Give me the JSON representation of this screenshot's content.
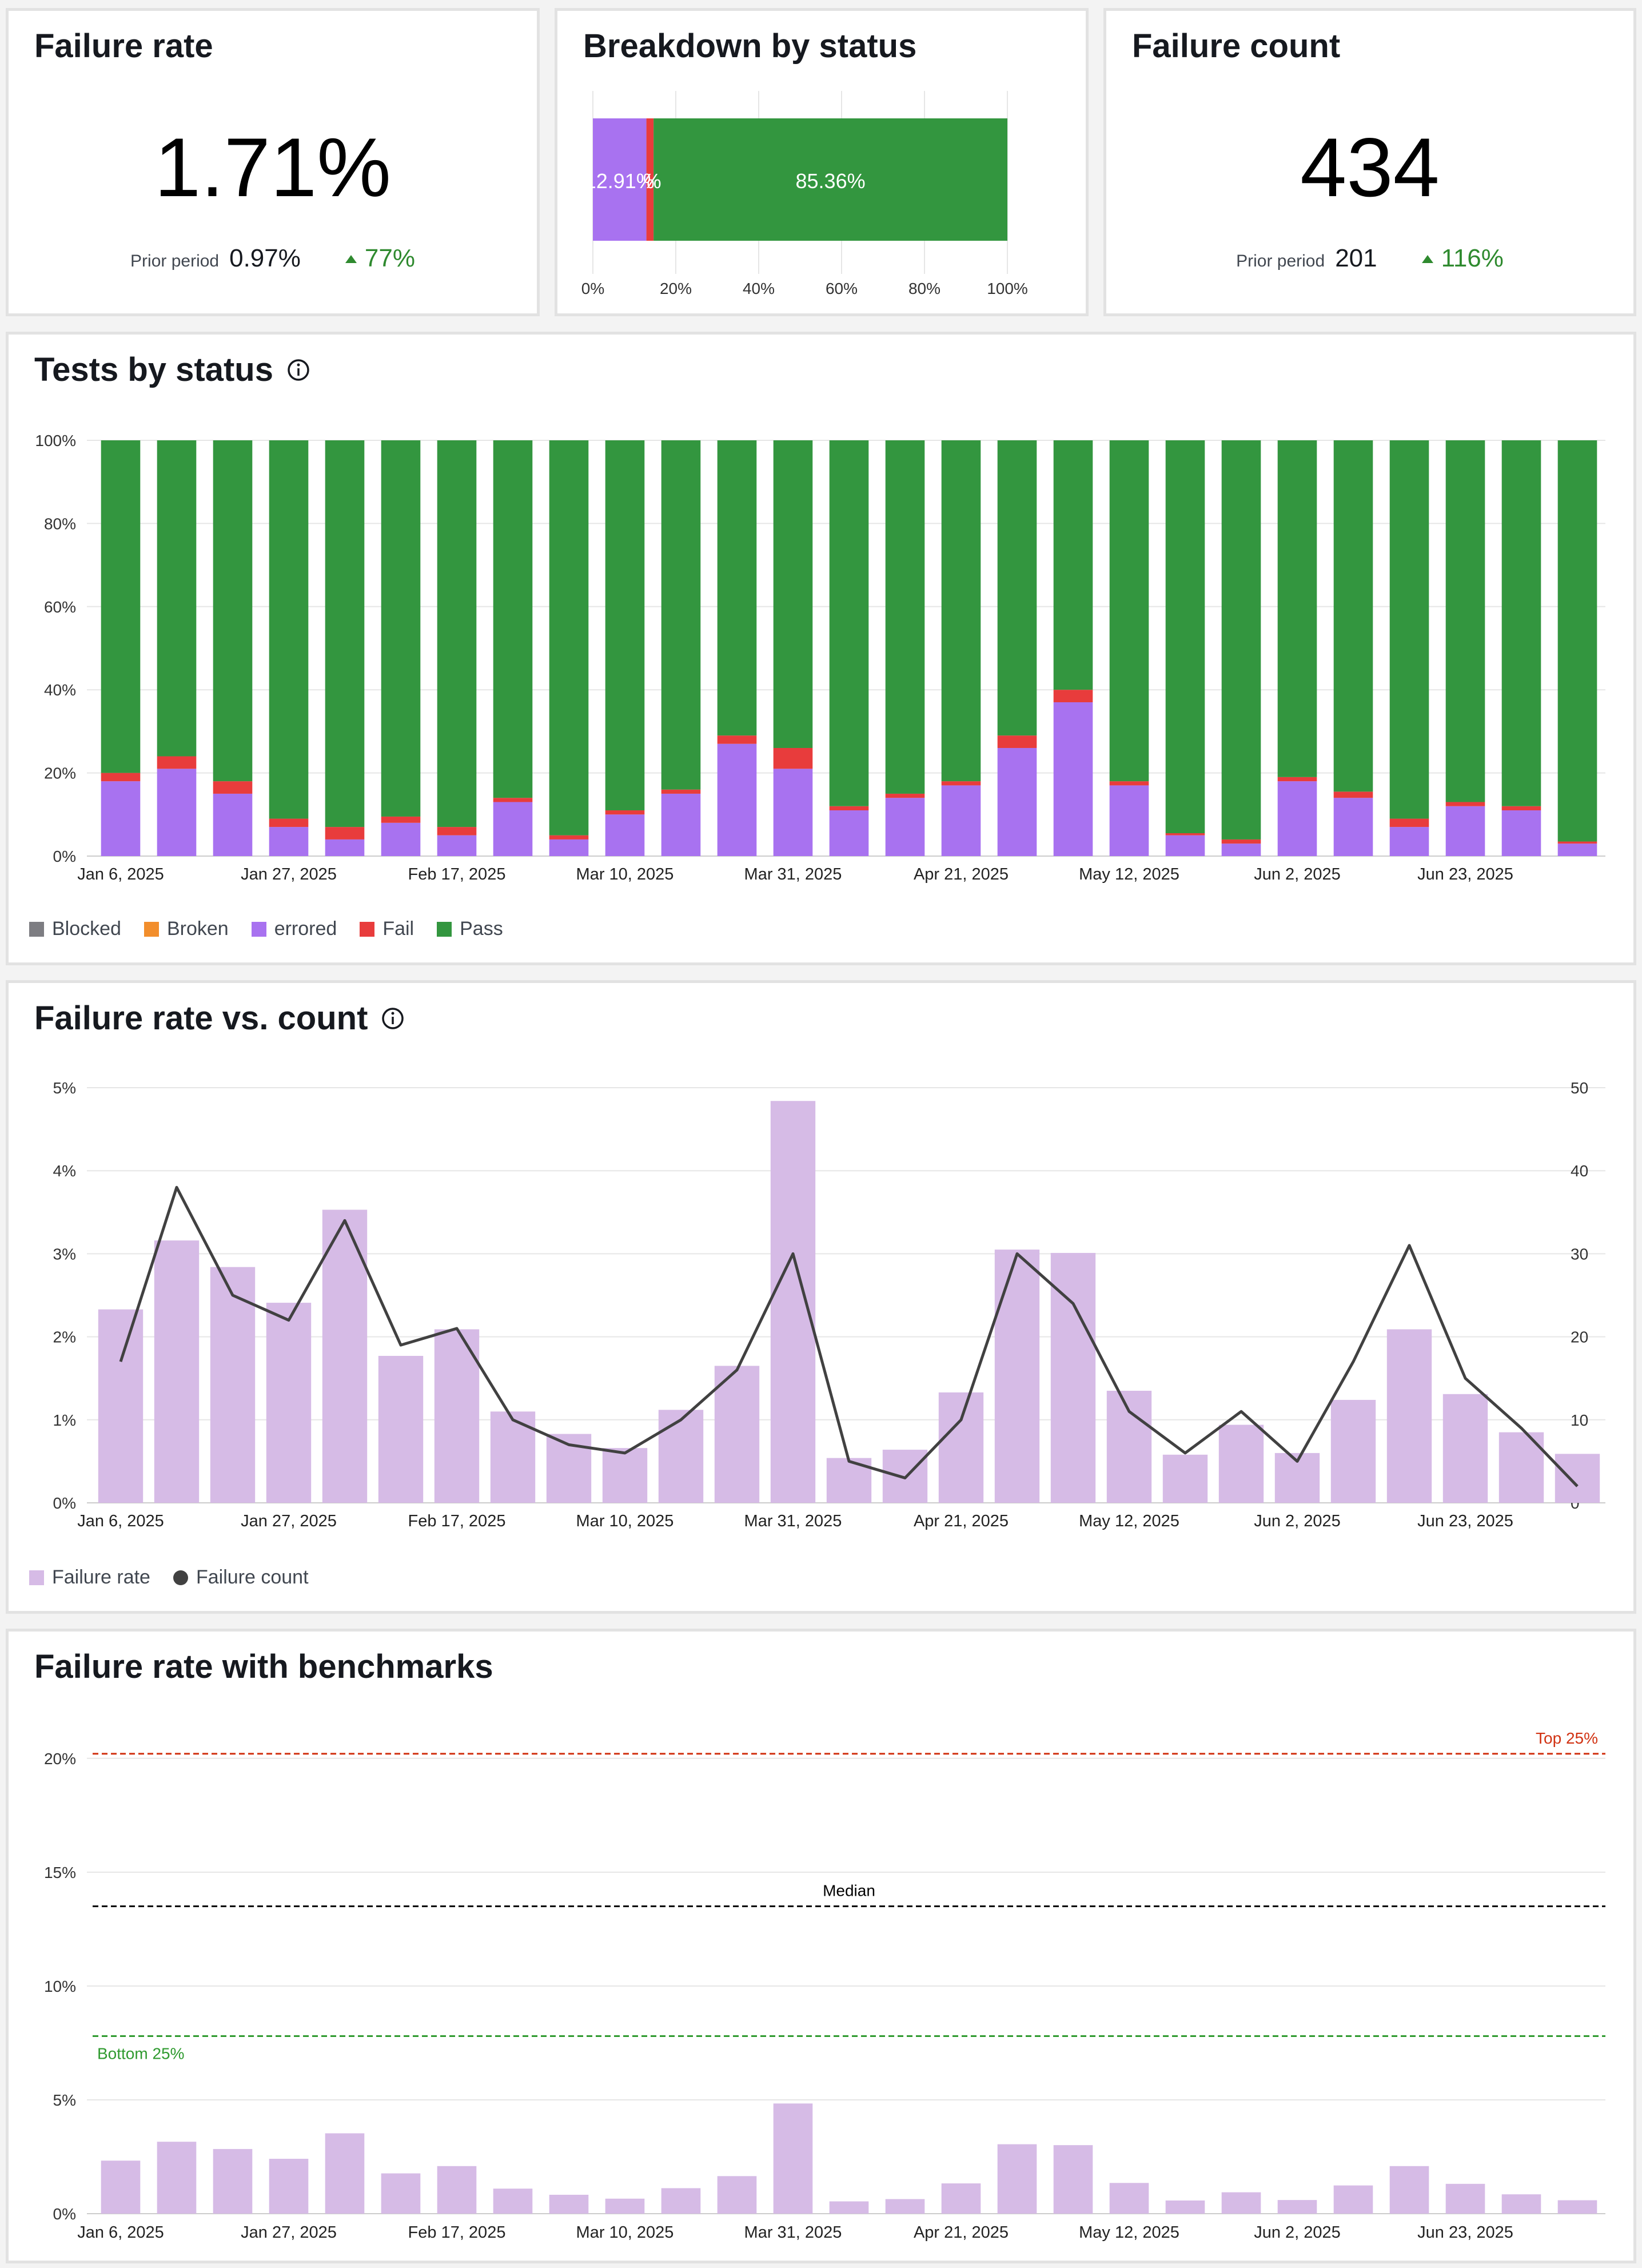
{
  "kpis": {
    "failure_rate": {
      "title": "Failure rate",
      "value": "1.71%",
      "prior_label": "Prior period",
      "prior_value": "0.97%",
      "delta": "77%",
      "delta_color": "#2f8a2f"
    },
    "failure_count": {
      "title": "Failure count",
      "value": "434",
      "prior_label": "Prior period",
      "prior_value": "201",
      "delta": "116%",
      "delta_color": "#2f8a2f"
    }
  },
  "colors": {
    "blocked": "#7d7d82",
    "broken": "#f28e2c",
    "errored": "#a872f0",
    "fail": "#e83c3c",
    "pass": "#33963f",
    "failure_rate_bar": "#d6bbe6",
    "failure_count_line": "#414141",
    "top25": "#d13212",
    "median": "#000000",
    "bottom25": "#2f9a2f"
  },
  "charts": {
    "breakdown": {
      "title": "Breakdown by status"
    },
    "tests_by_status": {
      "title": "Tests by status",
      "info_icon": "info-icon"
    },
    "rate_vs_count": {
      "title": "Failure rate vs. count",
      "info_icon": "info-icon"
    },
    "benchmarks": {
      "title": "Failure rate with benchmarks"
    }
  },
  "chart_data": [
    {
      "id": "breakdown",
      "type": "bar",
      "orientation": "horizontal-stacked",
      "title": "Breakdown by status",
      "series": [
        {
          "name": "errored",
          "value": 12.91,
          "label": "12.91%"
        },
        {
          "name": "Fail",
          "value": 1.73,
          "label": "%"
        },
        {
          "name": "Pass",
          "value": 85.36,
          "label": "85.36%"
        }
      ],
      "x_ticks": [
        "0%",
        "20%",
        "40%",
        "60%",
        "80%",
        "100%"
      ],
      "xlim": [
        0,
        100
      ],
      "grid": true
    },
    {
      "id": "tests_by_status",
      "type": "bar",
      "stacked": true,
      "title": "Tests by status",
      "y_ticks": [
        "0%",
        "20%",
        "40%",
        "60%",
        "80%",
        "100%"
      ],
      "ylim": [
        0,
        100
      ],
      "x_tick_labels": [
        "Jan 6, 2025",
        "Jan 27, 2025",
        "Feb 17, 2025",
        "Mar 10, 2025",
        "Mar 31, 2025",
        "Apr 21, 2025",
        "May 12, 2025",
        "Jun 2, 2025",
        "Jun 23, 2025"
      ],
      "x_tick_every": 3,
      "n_weeks": 27,
      "series": [
        {
          "name": "Blocked",
          "values": [
            0,
            0,
            0,
            0,
            0,
            0,
            0,
            0,
            0,
            0,
            0,
            0,
            0,
            0,
            0,
            0,
            0,
            0,
            0,
            0,
            0,
            0,
            0,
            0,
            0,
            0,
            0
          ]
        },
        {
          "name": "Broken",
          "values": [
            0,
            0,
            0,
            0,
            0,
            0,
            0,
            0,
            0,
            0,
            0,
            0,
            0,
            0,
            0,
            0,
            0,
            0,
            0,
            0,
            0,
            0,
            0,
            0,
            0,
            0,
            0
          ]
        },
        {
          "name": "errored",
          "values": [
            18,
            21,
            15,
            7,
            4,
            8,
            5,
            13,
            4,
            10,
            15,
            27,
            21,
            11,
            14,
            17,
            26,
            37,
            17,
            5,
            3,
            18,
            14,
            7,
            12,
            11,
            3
          ]
        },
        {
          "name": "Fail",
          "values": [
            2,
            3,
            3,
            2,
            3,
            1.5,
            2,
            1,
            1,
            1,
            1,
            2,
            5,
            1,
            1,
            1,
            3,
            3,
            1,
            0.5,
            1,
            1,
            1.5,
            2,
            1,
            1,
            0.5
          ]
        },
        {
          "name": "Pass",
          "values": [
            80,
            76,
            82,
            91,
            93,
            90.5,
            93,
            86,
            95,
            89,
            84,
            71,
            74,
            88,
            85,
            82,
            71,
            60,
            82,
            94.5,
            96,
            81,
            84.5,
            91,
            87,
            88,
            96.5
          ]
        }
      ],
      "legend": [
        "Blocked",
        "Broken",
        "errored",
        "Fail",
        "Pass"
      ],
      "legend_position": "bottom-left",
      "grid": true
    },
    {
      "id": "rate_vs_count",
      "type": "bar",
      "combo": "bar+line",
      "title": "Failure rate vs. count",
      "y_ticks_left": [
        "0%",
        "1%",
        "2%",
        "3%",
        "4%",
        "5%"
      ],
      "ylim_left": [
        0,
        5
      ],
      "y_ticks_right": [
        "0",
        "10",
        "20",
        "30",
        "40",
        "50"
      ],
      "ylim_right": [
        0,
        50
      ],
      "x_tick_labels": [
        "Jan 6, 2025",
        "Jan 27, 2025",
        "Feb 17, 2025",
        "Mar 10, 2025",
        "Mar 31, 2025",
        "Apr 21, 2025",
        "May 12, 2025",
        "Jun 2, 2025",
        "Jun 23, 2025"
      ],
      "x_tick_every": 3,
      "n_weeks": 27,
      "series": [
        {
          "name": "Failure rate",
          "type": "bar",
          "axis": "left",
          "values": [
            2.33,
            3.16,
            2.84,
            2.41,
            3.53,
            1.77,
            2.09,
            1.1,
            0.83,
            0.66,
            1.12,
            1.65,
            4.84,
            0.54,
            0.64,
            1.33,
            3.05,
            3.01,
            1.35,
            0.58,
            0.94,
            0.6,
            1.24,
            2.09,
            1.31,
            0.85,
            0.59
          ]
        },
        {
          "name": "Failure count",
          "type": "line",
          "axis": "right",
          "values": [
            17,
            38,
            25,
            22,
            34,
            19,
            21,
            10,
            7,
            6,
            10,
            16,
            30,
            5,
            3,
            10,
            30,
            24,
            11,
            6,
            11,
            5,
            17,
            31,
            15,
            9,
            2
          ]
        }
      ],
      "legend": [
        "Failure rate",
        "Failure count"
      ],
      "legend_position": "bottom-left",
      "grid": true
    },
    {
      "id": "benchmarks",
      "type": "bar",
      "title": "Failure rate with benchmarks",
      "y_ticks": [
        "0%",
        "5%",
        "10%",
        "15%",
        "20%"
      ],
      "ylim": [
        0,
        21.3
      ],
      "x_tick_labels": [
        "Jan 6, 2025",
        "Jan 27, 2025",
        "Feb 17, 2025",
        "Mar 10, 2025",
        "Mar 31, 2025",
        "Apr 21, 2025",
        "May 12, 2025",
        "Jun 2, 2025",
        "Jun 23, 2025"
      ],
      "x_tick_every": 3,
      "n_weeks": 27,
      "series": [
        {
          "name": "Failure rate",
          "values": [
            2.33,
            3.16,
            2.84,
            2.41,
            3.53,
            1.77,
            2.09,
            1.1,
            0.83,
            0.66,
            1.12,
            1.65,
            4.84,
            0.54,
            0.64,
            1.33,
            3.05,
            3.01,
            1.35,
            0.58,
            0.94,
            0.6,
            1.24,
            2.09,
            1.31,
            0.85,
            0.59
          ]
        }
      ],
      "benchmarks": [
        {
          "name": "Top 25%",
          "value": 20.2,
          "color": "#d13212",
          "label_align": "right"
        },
        {
          "name": "Median",
          "value": 13.5,
          "color": "#000000",
          "label_align": "center"
        },
        {
          "name": "Bottom 25%",
          "value": 7.8,
          "color": "#2f9a2f",
          "label_align": "left"
        }
      ],
      "grid": true
    }
  ]
}
